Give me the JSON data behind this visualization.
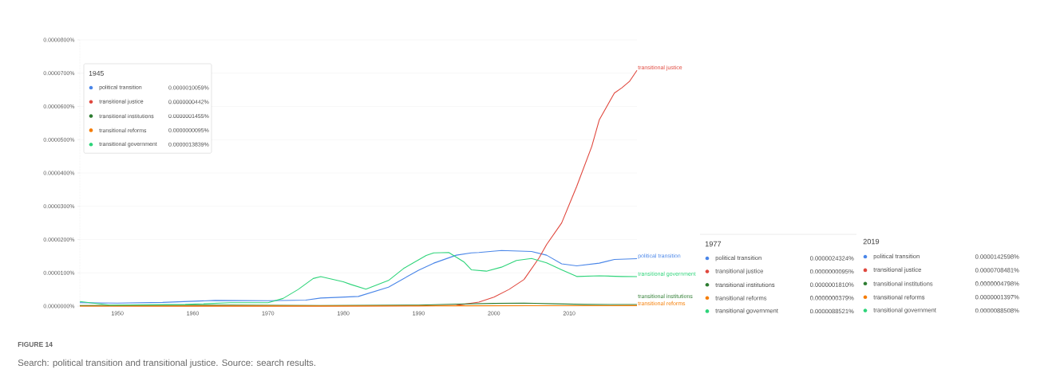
{
  "chart_data": {
    "type": "line",
    "xlim": [
      1945,
      2019
    ],
    "xticks": [
      1950,
      1960,
      1970,
      1980,
      1990,
      2000,
      2010
    ],
    "ylim": [
      0,
      8e-05
    ],
    "yticks": [
      {
        "value": 0,
        "label": "0.0000000%"
      },
      {
        "value": 1e-05,
        "label": "0.0000100%"
      },
      {
        "value": 2e-05,
        "label": "0.0000200%"
      },
      {
        "value": 3e-05,
        "label": "0.0000300%"
      },
      {
        "value": 4e-05,
        "label": "0.0000400%"
      },
      {
        "value": 5e-05,
        "label": "0.0000500%"
      },
      {
        "value": 6e-05,
        "label": "0.0000600%"
      },
      {
        "value": 7e-05,
        "label": "0.0000700%"
      },
      {
        "value": 8e-05,
        "label": "0.0000800%"
      }
    ],
    "grid": "y",
    "legend": "top left",
    "line_style": "solid",
    "series": [
      {
        "name": "political transition",
        "color": "#4a86e8",
        "x": [
          1945,
          1950,
          1956,
          1963,
          1970,
          1975,
          1977,
          1979,
          1982,
          1986,
          1990,
          1992,
          1995,
          1997,
          1998,
          2001,
          2005,
          2007,
          2009,
          2011,
          2014,
          2016,
          2019
        ],
        "values": [
          1.0059e-06,
          9e-07,
          1.1e-06,
          1.7e-06,
          1.6e-06,
          1.8e-06,
          2.4324e-06,
          2.6e-06,
          2.9e-06,
          5.7e-06,
          1.08e-05,
          1.29e-05,
          1.53e-05,
          1.6e-05,
          1.61e-05,
          1.67e-05,
          1.64e-05,
          1.53e-05,
          1.27e-05,
          1.21e-05,
          1.29e-05,
          1.4e-05,
          1.42598e-05
        ]
      },
      {
        "name": "transitional justice",
        "color": "#e0483e",
        "x": [
          1945,
          1960,
          1977,
          1990,
          1995,
          1998,
          2000,
          2002,
          2004,
          2006,
          2007,
          2009,
          2010,
          2011,
          2013,
          2014,
          2016,
          2017,
          2018,
          2019
        ],
        "values": [
          4.42e-08,
          1e-08,
          9.5e-09,
          5e-08,
          2e-07,
          1.2e-06,
          2.7e-06,
          5e-06,
          8e-06,
          1.45e-05,
          1.85e-05,
          2.5e-05,
          3.05e-05,
          3.6e-05,
          4.8e-05,
          5.6e-05,
          6.4e-05,
          6.56e-05,
          6.75e-05,
          7.08481e-05
        ]
      },
      {
        "name": "transitional institutions",
        "color": "#2e7d32",
        "x": [
          1945,
          1965,
          1977,
          1990,
          1995,
          2000,
          2004,
          2008,
          2012,
          2019
        ],
        "values": [
          1.455e-07,
          3e-07,
          1.81e-07,
          3e-07,
          6e-07,
          8e-07,
          9e-07,
          7e-07,
          5e-07,
          4.798e-07
        ]
      },
      {
        "name": "transitional reforms",
        "color": "#f57c00",
        "x": [
          1945,
          1977,
          1995,
          2005,
          2019
        ],
        "values": [
          9.5e-09,
          3.79e-08,
          8e-08,
          1.2e-07,
          1.397e-07
        ]
      },
      {
        "name": "transitional government",
        "color": "#2ed47a",
        "x": [
          1945,
          1949,
          1959,
          1965,
          1970,
          1972,
          1974,
          1976,
          1977,
          1980,
          1981,
          1983,
          1986,
          1988,
          1991,
          1992,
          1994,
          1996,
          1997,
          1999,
          2001,
          2003,
          2005,
          2007,
          2009,
          2011,
          2014,
          2017,
          2019
        ],
        "values": [
          1.3839e-06,
          3e-07,
          5e-07,
          1e-06,
          1e-06,
          2.3e-06,
          5e-06,
          8.3e-06,
          8.8521e-06,
          7.3e-06,
          6.5e-06,
          5.1e-06,
          7.7e-06,
          1.13e-05,
          1.52e-05,
          1.6e-05,
          1.61e-05,
          1.33e-05,
          1.09e-05,
          1.05e-05,
          1.17e-05,
          1.37e-05,
          1.43e-05,
          1.3e-05,
          1.09e-05,
          8.9e-06,
          9.1e-06,
          8.9e-06,
          8.8508e-06
        ]
      }
    ],
    "annotations": [
      "FIGURE 14",
      "Search: political transition and transitional justice. Source: search results.",
      "1945",
      "0.0000010059%",
      "0.0000000442%",
      "0.0000001455%",
      "0.0000000095%",
      "0.0000013839%",
      "1977",
      "political transition",
      "0.0000024324%",
      "transitional justice",
      "0.0000000095%",
      "transitional institutions",
      "0.0000001810%",
      "transitional reforms",
      "0.0000000379%",
      "transitional government",
      "0.0000088521%",
      "2019",
      "political transition",
      "0.0000142598%",
      "transitional justice",
      "0.0000708481%",
      "transitional institutions",
      "0.0000004798%",
      "transitional reforms",
      "0.0000001397%",
      "transitional government",
      "0.0000088508%"
    ]
  }
}
